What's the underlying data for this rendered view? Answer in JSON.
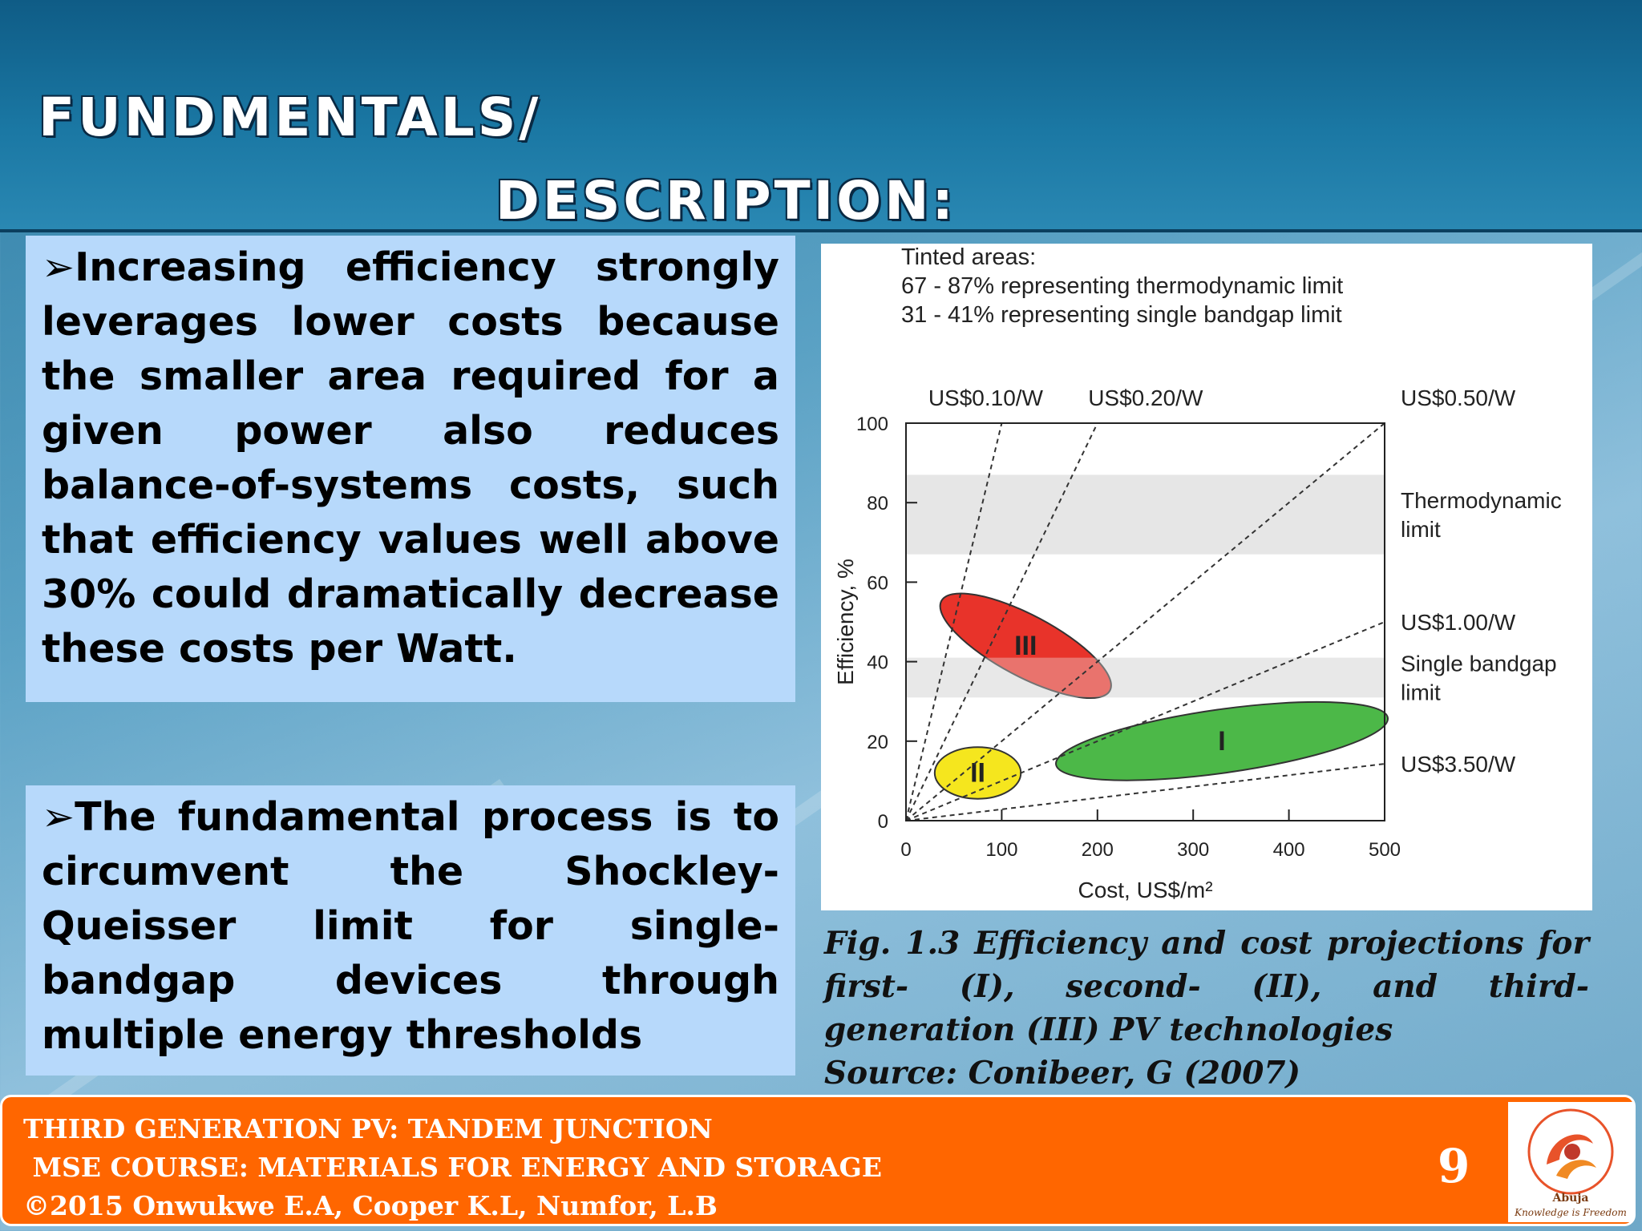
{
  "title": {
    "line1": "FUNDMENTALS/",
    "line2": "DESCRIPTION:"
  },
  "bullets": [
    {
      "arrow": "➢",
      "text": "Increasing efficiency strongly leverages lower costs because the smaller area required for a given power also reduces balance-of-systems costs, such that efficiency values well above 30% could dramatically decrease these costs per Watt."
    },
    {
      "arrow": "➢",
      "text": "The fundamental process is to circumvent the Shockley-Queisser limit for single-bandgap devices through multiple energy thresholds"
    }
  ],
  "caption": {
    "text": "Fig. 1.3  Efficiency and cost projections for first- (I), second- (II), and third- generation (III) PV technologies",
    "source": "Source:  Conibeer, G (2007)"
  },
  "footer": {
    "line1": "THIRD GENERATION PV: TANDEM JUNCTION",
    "line2": " MSE COURSE: MATERIALS FOR ENERGY AND STORAGE",
    "line3": "©2015 Onwukwe E.A, Cooper K.L, Numfor, L.B",
    "page_number": "9",
    "logo_name": "Abuja",
    "logo_motto": "Knowledge is Freedom"
  },
  "chart_data": {
    "type": "scatter",
    "xlabel": "Cost, US$/m²",
    "ylabel": "Efficiency, %",
    "xlim": [
      0,
      500
    ],
    "ylim": [
      0,
      100
    ],
    "xticks": [
      0,
      100,
      200,
      300,
      400,
      500
    ],
    "yticks": [
      0,
      20,
      40,
      60,
      80,
      100
    ],
    "legend_text": [
      "Tinted areas:",
      "67 - 87% representing thermodynamic limit",
      "31 - 41% representing single bandgap limit"
    ],
    "bands": [
      {
        "y_range": [
          67,
          87
        ],
        "label": [
          "Thermodynamic",
          "limit"
        ]
      },
      {
        "y_range": [
          31,
          41
        ],
        "label": [
          "Single bandgap",
          "limit"
        ]
      }
    ],
    "cost_lines": [
      {
        "label": "US$0.10/W",
        "slope": 1.0
      },
      {
        "label": "US$0.20/W",
        "slope": 0.5
      },
      {
        "label": "US$0.50/W",
        "slope": 0.2
      },
      {
        "label": "US$1.00/W",
        "slope": 0.1
      },
      {
        "label": "US$3.50/W",
        "slope": 0.0286
      }
    ],
    "regions": [
      {
        "label": "I",
        "cx": 330,
        "cy": 20,
        "rx": 175,
        "ry": 8,
        "angle_deg": -8,
        "color": "#4cb848"
      },
      {
        "label": "II",
        "cx": 75,
        "cy": 12,
        "rx": 45,
        "ry": 6.5,
        "angle_deg": 0,
        "color": "#f5e61e"
      },
      {
        "label": "III",
        "cx": 125,
        "cy": 44,
        "rx": 32,
        "ry": 24,
        "angle_deg": -62,
        "color": "#e8332a"
      }
    ],
    "colors": {
      "band": "#e6e6e6",
      "region_stroke": "#333333",
      "line": "#333333"
    }
  }
}
